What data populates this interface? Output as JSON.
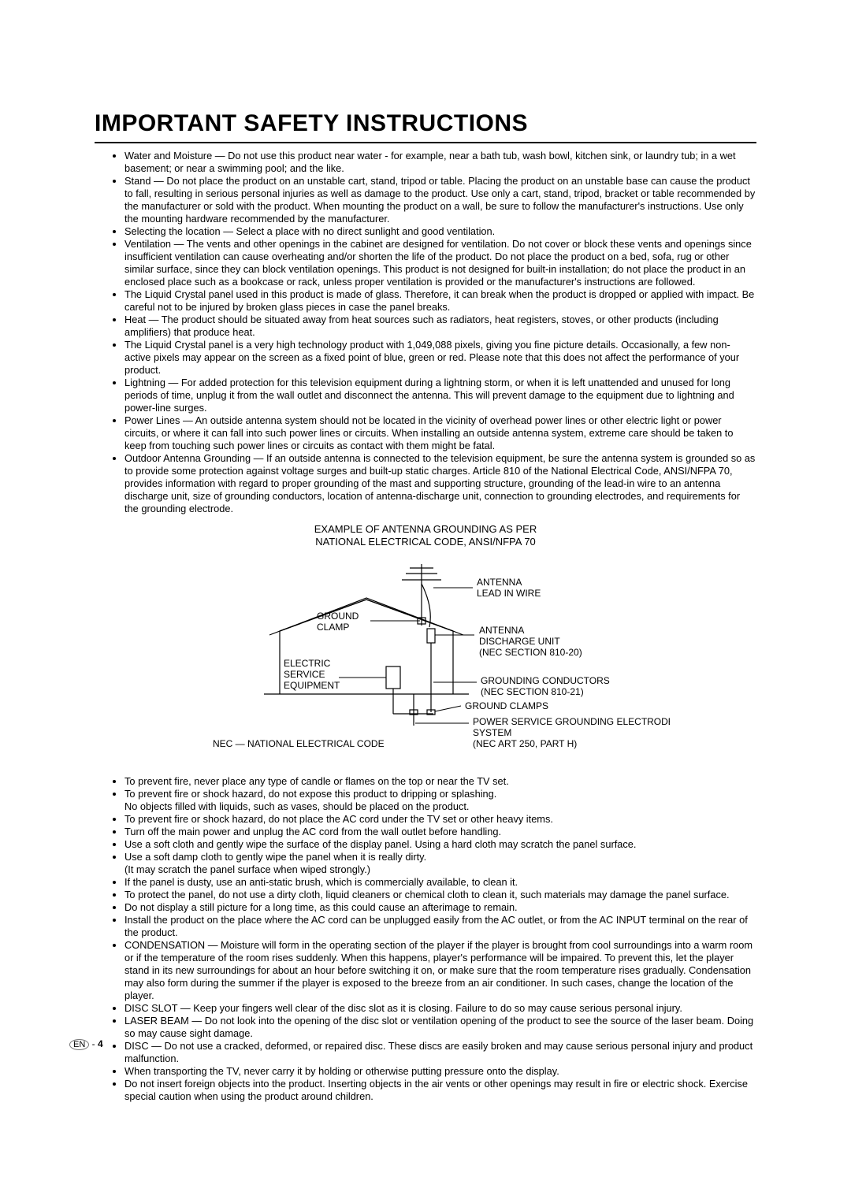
{
  "title": "IMPORTANT SAFETY INSTRUCTIONS",
  "instructions1": [
    "Water and Moisture — Do not use this product near water - for example, near a bath tub, wash bowl, kitchen sink, or laundry tub; in a wet basement; or near a swimming pool; and the like.",
    "Stand — Do not place the product on an unstable cart, stand, tripod or table. Placing the product on an unstable base can cause the product to fall, resulting in serious personal injuries as well as damage to the product. Use only a cart, stand, tripod, bracket or table recommended by the manufacturer or sold with the product. When mounting the product on a wall, be sure to follow the manufacturer's instructions. Use only the mounting hardware recommended by the manufacturer.",
    "Selecting the location — Select a place with no direct sunlight and good ventilation.",
    "Ventilation — The vents and other openings in the cabinet are designed for ventilation. Do not cover or block these vents and openings since insufficient ventilation can cause overheating and/or shorten the life of the product. Do not place the product on a bed, sofa, rug or other similar surface, since they can block ventilation openings. This product is not designed for built-in installation; do not place the product in an enclosed place such as a bookcase or rack, unless proper ventilation is provided or the manufacturer's instructions are followed.",
    "The Liquid Crystal panel used in this product is made of glass. Therefore, it can break when the product is dropped or applied with impact. Be careful not to be injured by broken glass pieces in case the panel breaks.",
    "Heat — The product should be situated away from heat sources such as radiators, heat registers, stoves, or other products (including amplifiers) that produce heat.",
    "The Liquid Crystal panel is a very high technology product with 1,049,088 pixels, giving you fine picture details. Occasionally, a few non-active pixels may appear on the screen as a fixed point of blue, green or red. Please note that this does not affect the performance of your product.",
    "Lightning — For added protection for this television equipment during a lightning storm, or when it is left unattended and unused for long periods of time, unplug it from the wall outlet and disconnect the antenna. This will prevent damage to the equipment due to lightning and power-line surges.",
    "Power Lines — An outside antenna system should not be located in the vicinity of overhead power lines or other electric light or power circuits, or where it can fall into such power lines or circuits. When installing an outside antenna system, extreme care should be taken to keep from touching such power lines or circuits as contact with them might be fatal.",
    "Outdoor Antenna Grounding — If an outside antenna is connected to the television equipment, be sure the antenna system is grounded so as to provide some protection against voltage surges and built-up static charges. Article 810 of the National Electrical Code, ANSI/NFPA 70, provides information with regard to proper grounding of the mast and supporting structure, grounding of the lead-in wire to an antenna discharge unit, size of grounding conductors, location of antenna-discharge unit, connection to grounding electrodes, and requirements for the grounding electrode."
  ],
  "diagram": {
    "title": "EXAMPLE OF ANTENNA GROUNDING AS PER\nNATIONAL ELECTRICAL CODE, ANSI/NFPA 70",
    "labels": {
      "antenna_lead": "ANTENNA\nLEAD IN WIRE",
      "ground_clamp": "GROUND\nCLAMP",
      "antenna_discharge": "ANTENNA\nDISCHARGE UNIT\n(NEC SECTION 810-20)",
      "electric_service": "ELECTRIC\nSERVICE\nEQUIPMENT",
      "grounding_conductors": "GROUNDING CONDUCTORS\n(NEC SECTION 810-21)",
      "ground_clamps": "GROUND CLAMPS",
      "power_service": "POWER SERVICE GROUNDING ELECTRODE\nSYSTEM\n(NEC ART 250, PART H)",
      "nec_note": "NEC — NATIONAL ELECTRICAL CODE"
    }
  },
  "instructions2": [
    {
      "text": "To prevent fire, never place any type of candle or flames on the top or near the TV set.",
      "bullet": true
    },
    {
      "text": "To prevent fire or shock hazard, do not expose this product to dripping or splashing.",
      "bullet": true
    },
    {
      "text": "No objects filled with liquids, such as vases, should be placed on the product.",
      "bullet": false
    },
    {
      "text": "To prevent fire or shock hazard, do not place the AC cord under the TV set or other heavy items.",
      "bullet": true
    },
    {
      "text": "Turn off the main power and unplug the AC cord from the wall outlet before handling.",
      "bullet": true
    },
    {
      "text": "Use a soft cloth and gently wipe the surface of the display panel. Using a hard cloth may scratch the panel surface.",
      "bullet": true
    },
    {
      "text": "Use a soft damp cloth to gently wipe the panel when it is really dirty.",
      "bullet": true
    },
    {
      "text": "(It may scratch the panel surface when wiped strongly.)",
      "bullet": false
    },
    {
      "text": "If the panel is dusty, use an anti-static brush, which is commercially available, to clean it.",
      "bullet": true
    },
    {
      "text": "To protect the panel, do not use a dirty cloth, liquid cleaners or chemical cloth to clean it, such materials may damage the panel surface.",
      "bullet": true
    },
    {
      "text": "Do not display a still picture for a long time, as this could cause an afterimage to remain.",
      "bullet": true
    },
    {
      "text": "Install the product on the place where the AC cord can be unplugged easily from the AC outlet, or from the AC INPUT terminal on the rear of the product.",
      "bullet": true
    },
    {
      "text": "CONDENSATION — Moisture will form in the operating section of the player if the player is brought from cool surroundings into a warm room or if the temperature of the room rises suddenly. When this happens, player's performance will be impaired. To prevent this, let the player stand in its new surroundings for about an hour before switching it on, or make sure that the room temperature rises gradually. Condensation may also form during the summer if the player is exposed to the breeze from an air conditioner. In such cases, change the location of the player.",
      "bullet": true
    },
    {
      "text": "DISC SLOT — Keep your fingers well clear of the disc slot as it is closing. Failure to do so may cause serious personal injury.",
      "bullet": true
    },
    {
      "text": "LASER BEAM — Do not look into the opening of the disc slot or ventilation opening of the product to see the source of the laser beam. Doing so may cause sight damage.",
      "bullet": true
    },
    {
      "text": "DISC — Do not use a cracked, deformed, or repaired disc. These discs are easily broken and may cause serious personal injury and product malfunction.",
      "bullet": true
    },
    {
      "text": "When transporting the TV, never carry it by holding or otherwise putting pressure onto the display.",
      "bullet": true
    },
    {
      "text": "Do not insert foreign objects into the product. Inserting objects in the air vents or other openings may result in fire or electric shock. Exercise special caution when using the product around children.",
      "bullet": true
    }
  ],
  "page": {
    "lang": "EN",
    "sep": " - ",
    "num": "4"
  }
}
